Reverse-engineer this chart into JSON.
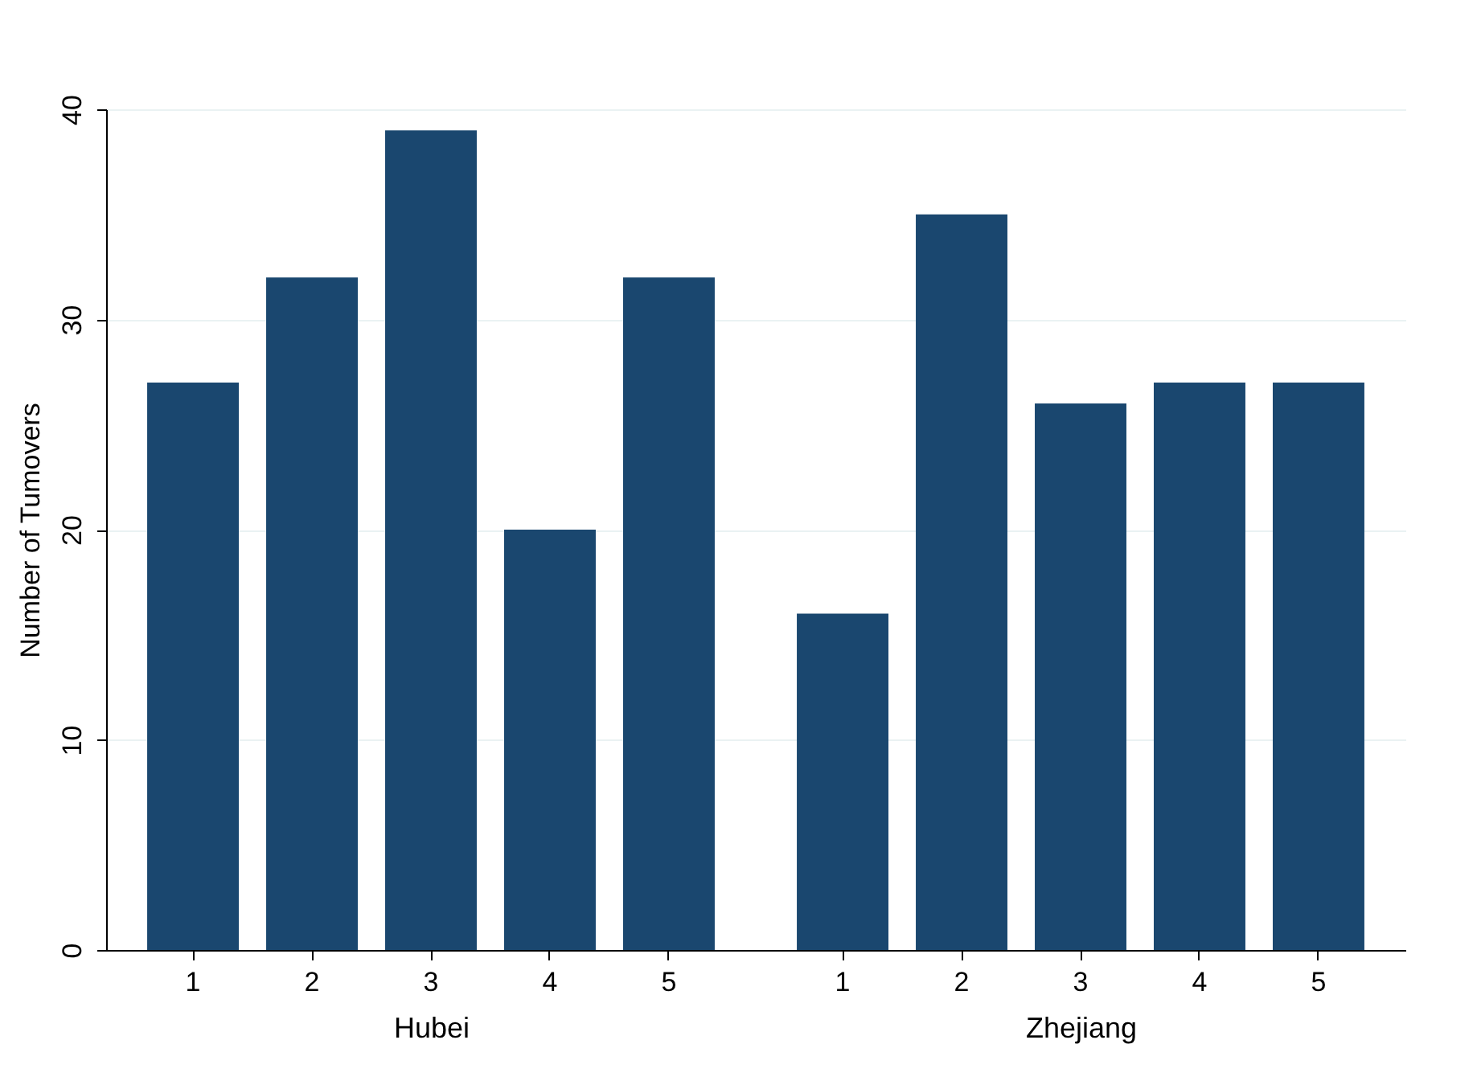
{
  "chart_data": [
    {
      "type": "bar",
      "xlabel": "Hubei",
      "ylabel": "Number of Tumovers",
      "categories": [
        "1",
        "2",
        "3",
        "4",
        "5"
      ],
      "values": [
        27,
        32,
        39,
        20,
        32
      ],
      "color": "#1a476f",
      "ylim": [
        0,
        40
      ],
      "yticks": [
        0,
        10,
        20,
        30,
        40
      ],
      "grid": "y"
    },
    {
      "type": "bar",
      "xlabel": "Zhejiang",
      "categories": [
        "1",
        "2",
        "3",
        "4",
        "5"
      ],
      "values": [
        16,
        35,
        26,
        27,
        27
      ],
      "color": "#1a476f",
      "ylim": [
        0,
        40
      ],
      "yticks": [
        0,
        10,
        20,
        30,
        40
      ],
      "grid": "y",
      "tick_labels": "x"
    }
  ]
}
